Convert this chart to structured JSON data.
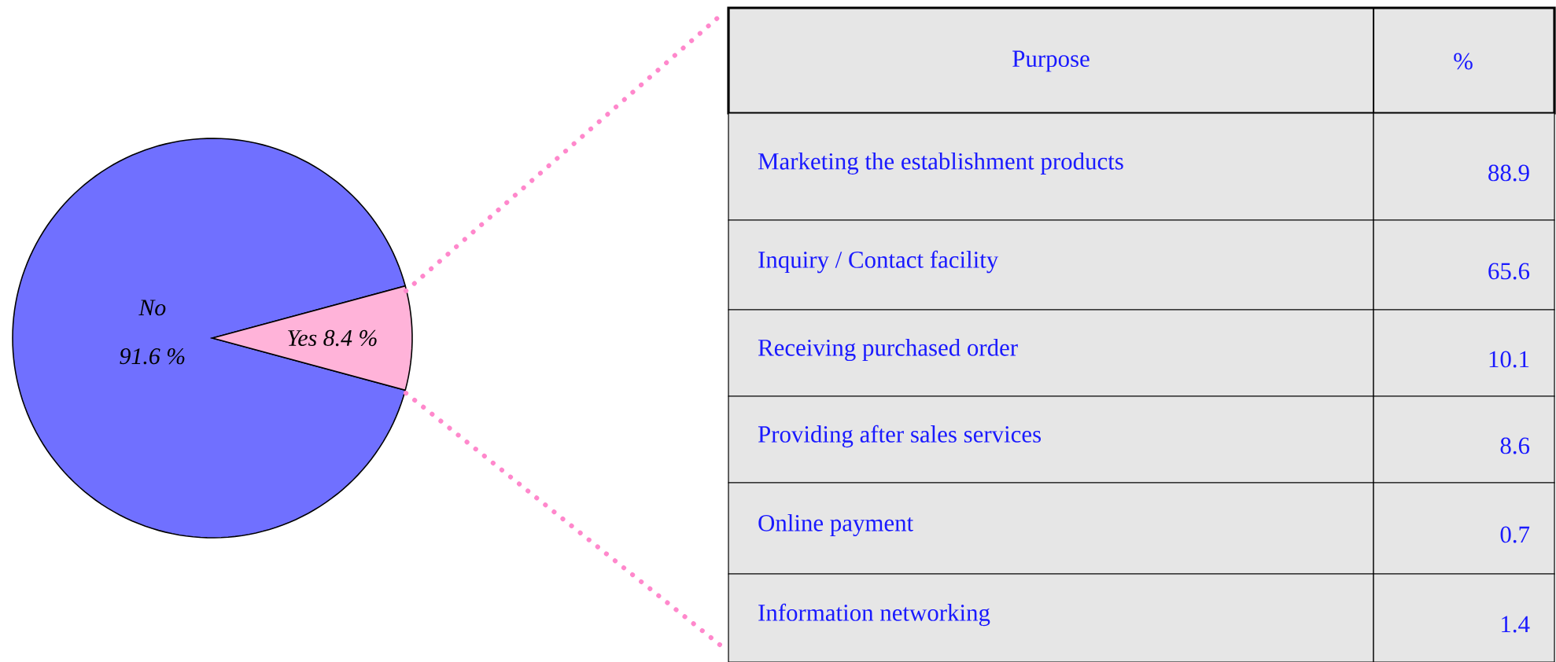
{
  "chart_data": [
    {
      "type": "pie",
      "categories": [
        "No",
        "Yes"
      ],
      "values": [
        91.6,
        8.4
      ],
      "value_labels": [
        "91.6 %",
        "8.4 %"
      ],
      "colors": [
        "#7070ff",
        "#ffb3d9"
      ]
    },
    {
      "type": "other",
      "xlabel": "Purpose",
      "ylabel": "%",
      "categories": [
        "Marketing the establishment products",
        "Inquiry / Contact facility",
        "Receiving purchased order",
        "Providing after sales services",
        "Online payment",
        "Information networking"
      ],
      "values": [
        88.9,
        65.6,
        10.1,
        8.6,
        0.7,
        1.4
      ],
      "data_labels": true
    }
  ]
}
